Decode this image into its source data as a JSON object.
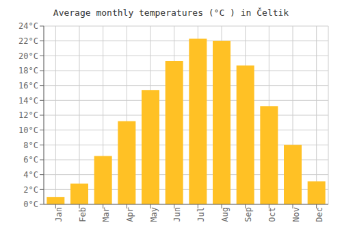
{
  "chart_data": {
    "type": "bar",
    "title": "Average monthly temperatures (°C ) in Čeltik",
    "categories": [
      "Jan",
      "Feb",
      "Mar",
      "Apr",
      "May",
      "Jun",
      "Jul",
      "Aug",
      "Sep",
      "Oct",
      "Nov",
      "Dec"
    ],
    "values": [
      1.0,
      2.8,
      6.5,
      11.2,
      15.4,
      19.3,
      22.3,
      22.0,
      18.7,
      13.2,
      8.0,
      3.1
    ],
    "color": "#FFC125",
    "ylim": [
      0,
      24
    ],
    "yticks": [
      {
        "value": 0,
        "label": "0°C"
      },
      {
        "value": 2,
        "label": "2°C"
      },
      {
        "value": 4,
        "label": "4°C"
      },
      {
        "value": 6,
        "label": "6°C"
      },
      {
        "value": 8,
        "label": "8°C"
      },
      {
        "value": 10,
        "label": "10°C"
      },
      {
        "value": 12,
        "label": "12°C"
      },
      {
        "value": 14,
        "label": "14°C"
      },
      {
        "value": 16,
        "label": "16°C"
      },
      {
        "value": 18,
        "label": "18°C"
      },
      {
        "value": 20,
        "label": "20°C"
      },
      {
        "value": 22,
        "label": "22°C"
      },
      {
        "value": 24,
        "label": "24°C"
      }
    ],
    "grid": true
  }
}
